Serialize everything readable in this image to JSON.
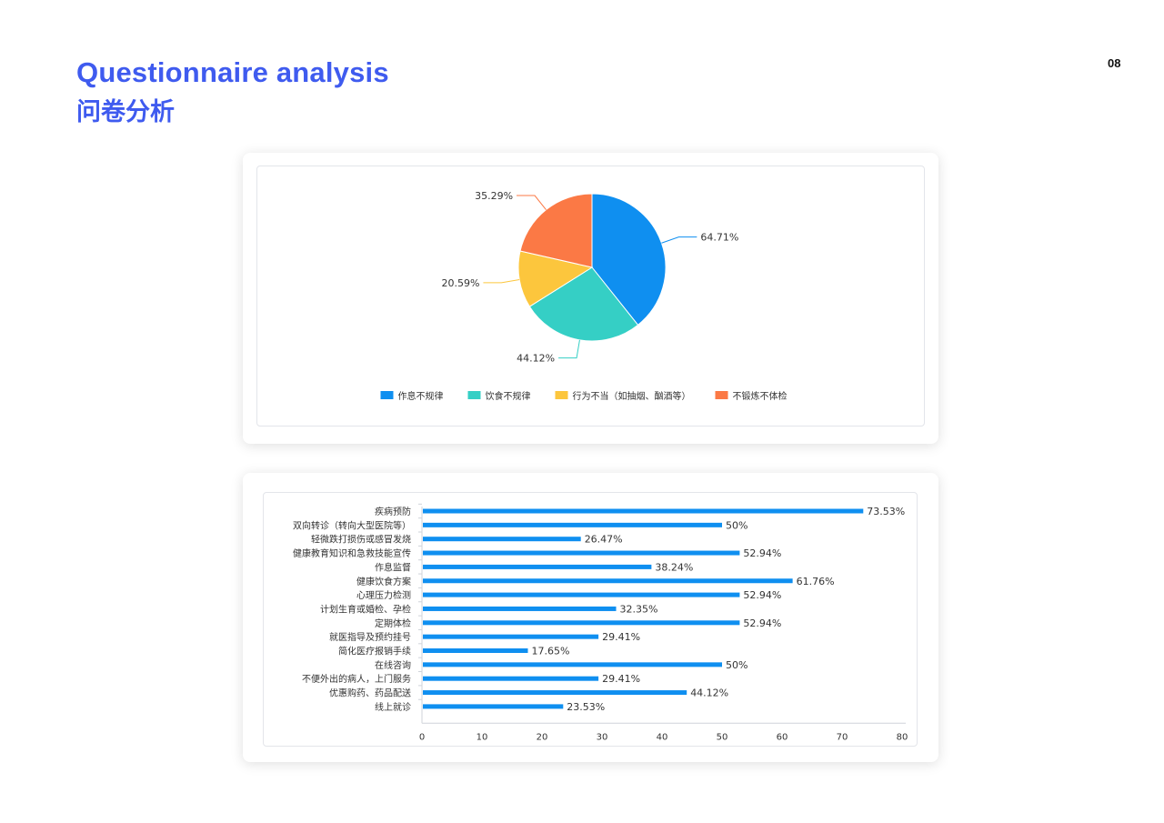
{
  "header": {
    "title_en": "Questionnaire analysis",
    "title_zh": "问卷分析",
    "page_number": "08"
  },
  "chart_data": [
    {
      "type": "pie",
      "slices": [
        {
          "label": "作息不规律",
          "value": 64.71,
          "value_label": "64.71%",
          "color": "#0f8ff0"
        },
        {
          "label": "饮食不规律",
          "value": 44.12,
          "value_label": "44.12%",
          "color": "#35cfc5"
        },
        {
          "label": "行为不当（如抽烟、酗酒等）",
          "value": 20.59,
          "value_label": "20.59%",
          "color": "#fcc63d"
        },
        {
          "label": "不锻炼不体检",
          "value": 35.29,
          "value_label": "35.29%",
          "color": "#fb7945"
        }
      ],
      "legend_position": "bottom"
    },
    {
      "type": "bar",
      "orientation": "horizontal",
      "color": "#0f8ff0",
      "categories": [
        "疾病预防",
        "双向转诊（转向大型医院等）",
        "轻微跌打损伤或感冒发烧",
        "健康教育知识和急救技能宣传",
        "作息监督",
        "健康饮食方案",
        "心理压力检测",
        "计划生育或婚检、孕检",
        "定期体检",
        "就医指导及预约挂号",
        "简化医疗报销手续",
        "在线咨询",
        "不便外出的病人，上门服务",
        "优惠购药、药品配送",
        "线上就诊"
      ],
      "values": [
        73.53,
        50,
        26.47,
        52.94,
        38.24,
        61.76,
        52.94,
        32.35,
        52.94,
        29.41,
        17.65,
        50,
        29.41,
        44.12,
        23.53
      ],
      "value_labels": [
        "73.53%",
        "50%",
        "26.47%",
        "52.94%",
        "38.24%",
        "61.76%",
        "52.94%",
        "32.35%",
        "52.94%",
        "29.41%",
        "17.65%",
        "50%",
        "29.41%",
        "44.12%",
        "23.53%"
      ],
      "xlim": [
        0,
        80
      ],
      "xticks": [
        "0",
        "10",
        "20",
        "30",
        "40",
        "50",
        "60",
        "70",
        "80"
      ]
    }
  ]
}
